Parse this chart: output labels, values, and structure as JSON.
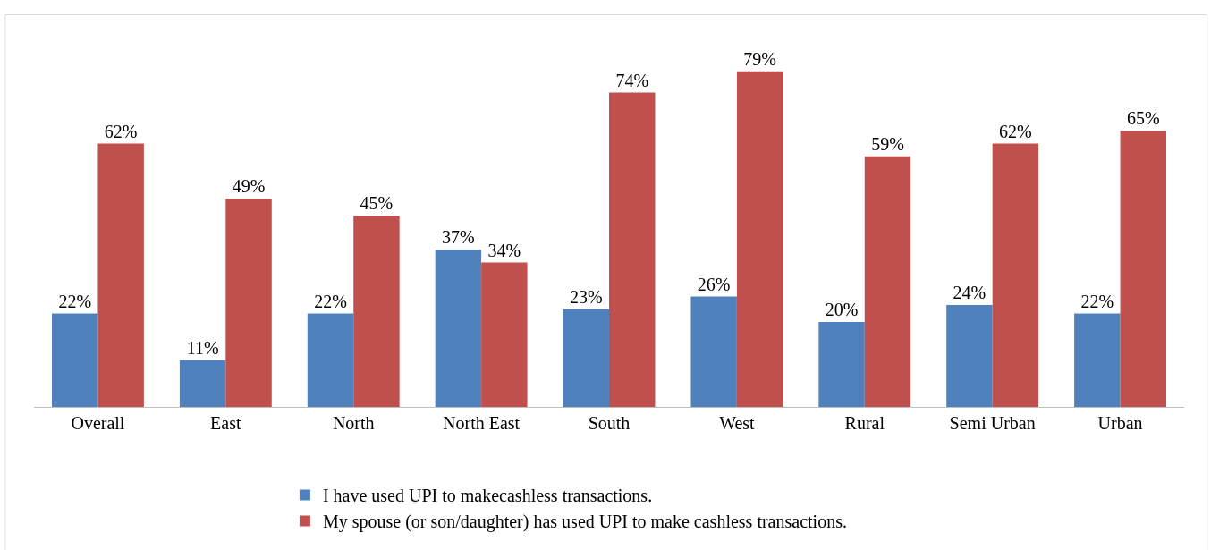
{
  "chart_data": {
    "type": "bar",
    "categories": [
      "Overall",
      "East",
      "North",
      "North East",
      "South",
      "West",
      "Rural",
      "Semi Urban",
      "Urban"
    ],
    "series": [
      {
        "name": "I have used UPI to makecashless transactions.",
        "color": "#4f81bd",
        "values": [
          22,
          11,
          22,
          37,
          23,
          26,
          20,
          24,
          22
        ],
        "value_labels": [
          "22%",
          "11%",
          "22%",
          "37%",
          "23%",
          "26%",
          "20%",
          "24%",
          "22%"
        ]
      },
      {
        "name": "My spouse (or son/daughter) has used UPI to make cashless transactions.",
        "color": "#c0504d",
        "values": [
          62,
          49,
          45,
          34,
          74,
          79,
          59,
          62,
          65
        ],
        "value_labels": [
          "62%",
          "49%",
          "45%",
          "34%",
          "74%",
          "79%",
          "59%",
          "62%",
          "65%"
        ]
      }
    ],
    "legend": "bottom"
  }
}
